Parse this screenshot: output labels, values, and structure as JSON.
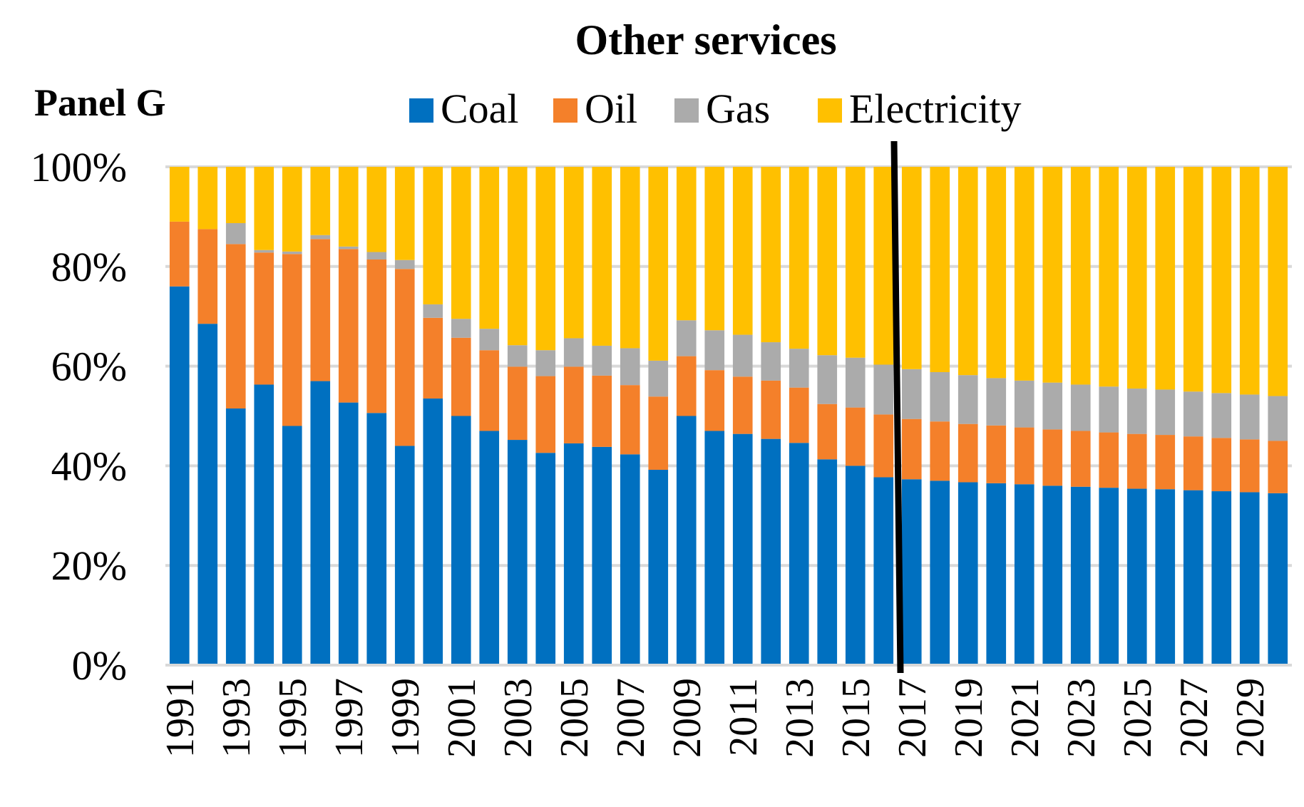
{
  "panel_label": "Panel G",
  "chart_data": {
    "type": "bar",
    "stacked": true,
    "title": "Other services",
    "xlabel": "",
    "ylabel": "",
    "ylim": [
      0,
      100
    ],
    "y_ticks": [
      "0%",
      "20%",
      "40%",
      "60%",
      "80%",
      "100%"
    ],
    "y_tick_values": [
      0,
      20,
      40,
      60,
      80,
      100
    ],
    "categories": [
      "1991",
      "1992",
      "1993",
      "1994",
      "1995",
      "1996",
      "1997",
      "1998",
      "1999",
      "2000",
      "2001",
      "2002",
      "2003",
      "2004",
      "2005",
      "2006",
      "2007",
      "2008",
      "2009",
      "2010",
      "2011",
      "2012",
      "2013",
      "2014",
      "2015",
      "2016",
      "2017",
      "2018",
      "2019",
      "2020",
      "2021",
      "2022",
      "2023",
      "2024",
      "2025",
      "2026",
      "2027",
      "2028",
      "2029",
      "2030"
    ],
    "x_tick_labels": [
      "1991",
      "1993",
      "1995",
      "1997",
      "1999",
      "2001",
      "2003",
      "2005",
      "2007",
      "2009",
      "2011",
      "2013",
      "2015",
      "2017",
      "2019",
      "2021",
      "2023",
      "2025",
      "2027",
      "2029"
    ],
    "legend_position": "top",
    "grid": true,
    "divider_after_category": "2016",
    "series": [
      {
        "name": "Coal",
        "color": "#0070C0",
        "values": [
          76,
          68.5,
          51.5,
          56.3,
          48,
          57,
          52.7,
          50.6,
          44,
          53.5,
          50,
          47,
          45.2,
          42.6,
          44.5,
          43.8,
          42.3,
          39.2,
          50,
          47,
          46.4,
          45.4,
          44.6,
          41.3,
          40,
          37.7,
          37.3,
          37,
          36.7,
          36.5,
          36.3,
          36,
          35.8,
          35.6,
          35.4,
          35.3,
          35.1,
          34.9,
          34.7,
          34.5
        ]
      },
      {
        "name": "Oil",
        "color": "#F4802A",
        "values": [
          13,
          19,
          33,
          26.5,
          34.5,
          28.5,
          30.8,
          30.8,
          35.5,
          16.2,
          15.7,
          16.2,
          14.7,
          15.4,
          15.4,
          14.3,
          13.9,
          14.7,
          12,
          12.2,
          11.5,
          11.7,
          11.1,
          11.1,
          11.7,
          12.6,
          12.1,
          11.9,
          11.7,
          11.6,
          11.4,
          11.3,
          11.2,
          11.1,
          11,
          10.9,
          10.8,
          10.7,
          10.6,
          10.5
        ]
      },
      {
        "name": "Gas",
        "color": "#ABABAB",
        "values": [
          0,
          0,
          4.2,
          0.5,
          0.5,
          0.8,
          0.5,
          1.5,
          1.8,
          2.7,
          3.8,
          4.3,
          4.3,
          5.2,
          5.7,
          6,
          7.4,
          7.2,
          7.2,
          8,
          8.4,
          7.7,
          7.8,
          9.8,
          10,
          10,
          10,
          9.9,
          9.8,
          9.5,
          9.4,
          9.4,
          9.3,
          9.2,
          9.1,
          9.1,
          9,
          9,
          9,
          9
        ]
      },
      {
        "name": "Electricity",
        "color": "#FFC000",
        "values": [
          11,
          12.5,
          11.3,
          16.7,
          17,
          13.7,
          16,
          17.1,
          18.7,
          27.6,
          30.5,
          32.5,
          35.8,
          36.8,
          34.4,
          35.9,
          36.4,
          38.9,
          30.8,
          32.8,
          33.7,
          35.2,
          36.5,
          37.8,
          38.3,
          39.7,
          40.6,
          41.2,
          41.8,
          42.4,
          42.9,
          43.3,
          43.7,
          44.1,
          44.5,
          44.7,
          45.1,
          45.4,
          45.7,
          46
        ]
      }
    ]
  }
}
